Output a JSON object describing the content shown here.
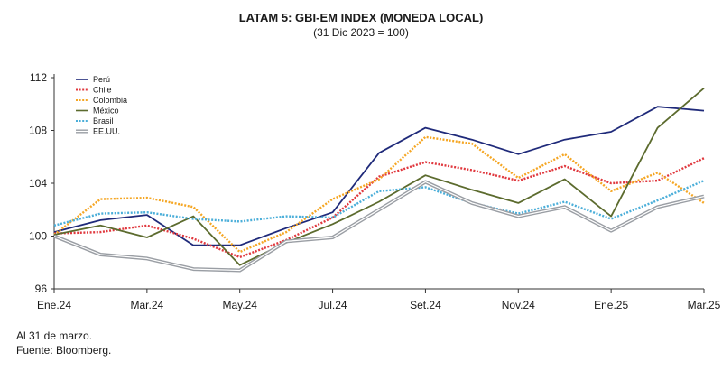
{
  "chart_data": {
    "type": "line",
    "title": "LATAM 5: GBI-EM INDEX (MONEDA LOCAL)",
    "subtitle": "(31 Dic 2023 = 100)",
    "xlabel": "",
    "ylabel": "",
    "ylim": [
      96,
      112
    ],
    "yticks": [
      96,
      100,
      104,
      108,
      112
    ],
    "xticks": [
      "Ene.24",
      "Mar.24",
      "May.24",
      "Jul.24",
      "Set.24",
      "Nov.24",
      "Ene.25",
      "Mar.25"
    ],
    "legend_position": "top-left",
    "x": [
      "Ene.24",
      "Feb.24",
      "Mar.24",
      "Abr.24",
      "May.24",
      "Jun.24",
      "Jul.24",
      "Ago.24",
      "Set.24",
      "Oct.24",
      "Nov.24",
      "Dic.24",
      "Ene.25",
      "Feb.25",
      "Mar.25"
    ],
    "series": [
      {
        "name": "Perú",
        "color": "#1f2a7a",
        "dash": "solid",
        "values": [
          100.3,
          101.2,
          101.6,
          99.3,
          99.3,
          100.6,
          101.8,
          106.3,
          108.2,
          107.3,
          106.2,
          107.3,
          107.9,
          109.8,
          109.5
        ]
      },
      {
        "name": "Chile",
        "color": "#e0383e",
        "dash": "dotted",
        "values": [
          100.2,
          100.3,
          100.8,
          99.8,
          98.4,
          99.7,
          101.4,
          104.5,
          105.6,
          105.0,
          104.2,
          105.3,
          104.0,
          104.2,
          105.9
        ]
      },
      {
        "name": "Colombia",
        "color": "#f5a623",
        "dash": "dotted",
        "values": [
          100.1,
          102.8,
          102.9,
          102.2,
          98.8,
          100.3,
          102.8,
          104.3,
          107.5,
          107.0,
          104.4,
          106.2,
          103.4,
          104.8,
          102.5
        ]
      },
      {
        "name": "México",
        "color": "#5c6b2e",
        "dash": "solid",
        "values": [
          100.1,
          100.8,
          99.9,
          101.5,
          97.8,
          99.5,
          100.9,
          102.6,
          104.6,
          103.5,
          102.5,
          104.3,
          101.5,
          108.2,
          111.2
        ]
      },
      {
        "name": "Brasil",
        "color": "#4aaed9",
        "dash": "dotted",
        "values": [
          100.8,
          101.7,
          101.8,
          101.3,
          101.1,
          101.5,
          101.4,
          103.4,
          103.7,
          102.5,
          101.7,
          102.6,
          101.3,
          102.7,
          104.2
        ]
      },
      {
        "name": "EE.UU.",
        "color": "#9a9ea4",
        "dash": "double",
        "values": [
          100.0,
          98.6,
          98.3,
          97.5,
          97.4,
          99.6,
          99.9,
          102.0,
          104.1,
          102.5,
          101.5,
          102.2,
          100.4,
          102.2,
          103.0
        ]
      }
    ]
  },
  "notes": [
    "Al 31 de marzo.",
    "Fuente: Bloomberg."
  ]
}
